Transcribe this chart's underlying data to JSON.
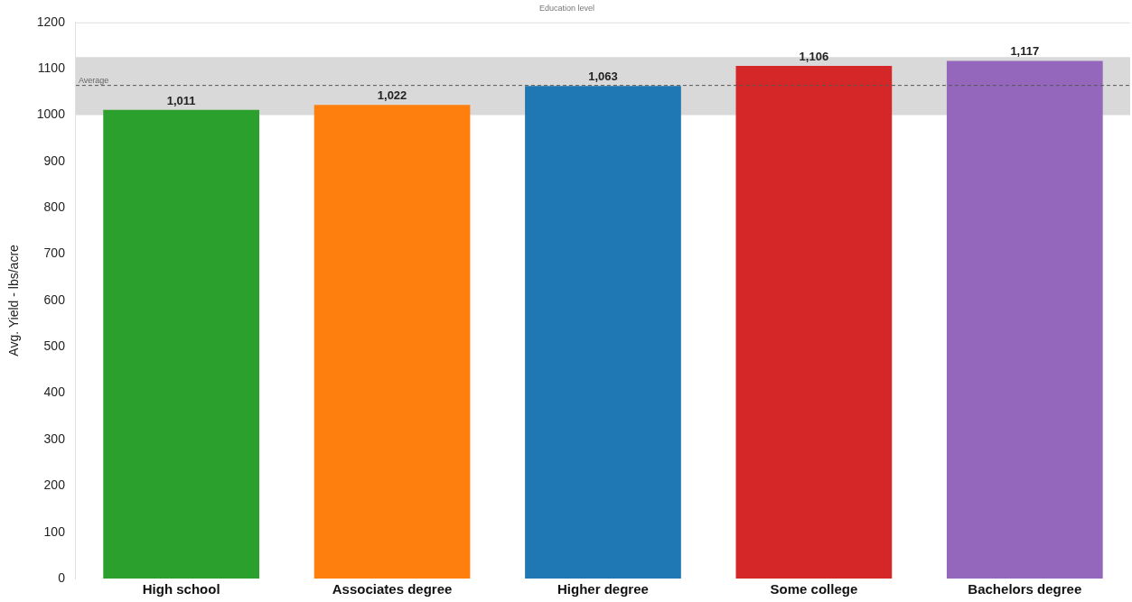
{
  "chart_data": {
    "type": "bar",
    "title": "Education level",
    "ylabel": "Avg. Yield - lbs/acre",
    "categories": [
      "High school",
      "Associates degree",
      "Higher degree",
      "Some college",
      "Bachelors degree"
    ],
    "values": [
      1011,
      1022,
      1063,
      1106,
      1117
    ],
    "colors": [
      "#2ca02c",
      "#ff7f0e",
      "#1f77b4",
      "#d62728",
      "#9467bd"
    ],
    "value_labels": [
      "1,011",
      "1,022",
      "1,063",
      "1,106",
      "1,117"
    ],
    "ylim": [
      0,
      1200
    ],
    "yticks": [
      0,
      100,
      200,
      300,
      400,
      500,
      600,
      700,
      800,
      900,
      1000,
      1100,
      1200
    ],
    "ref_lines": [
      {
        "axis": "y",
        "value": 1064,
        "label": "Average",
        "color": "#555555",
        "line_style": "dashed"
      }
    ],
    "bands": [
      {
        "axis": "y",
        "from": 1000,
        "to": 1125,
        "color": "#d9d9d9"
      }
    ],
    "grid": false,
    "legend": false
  }
}
